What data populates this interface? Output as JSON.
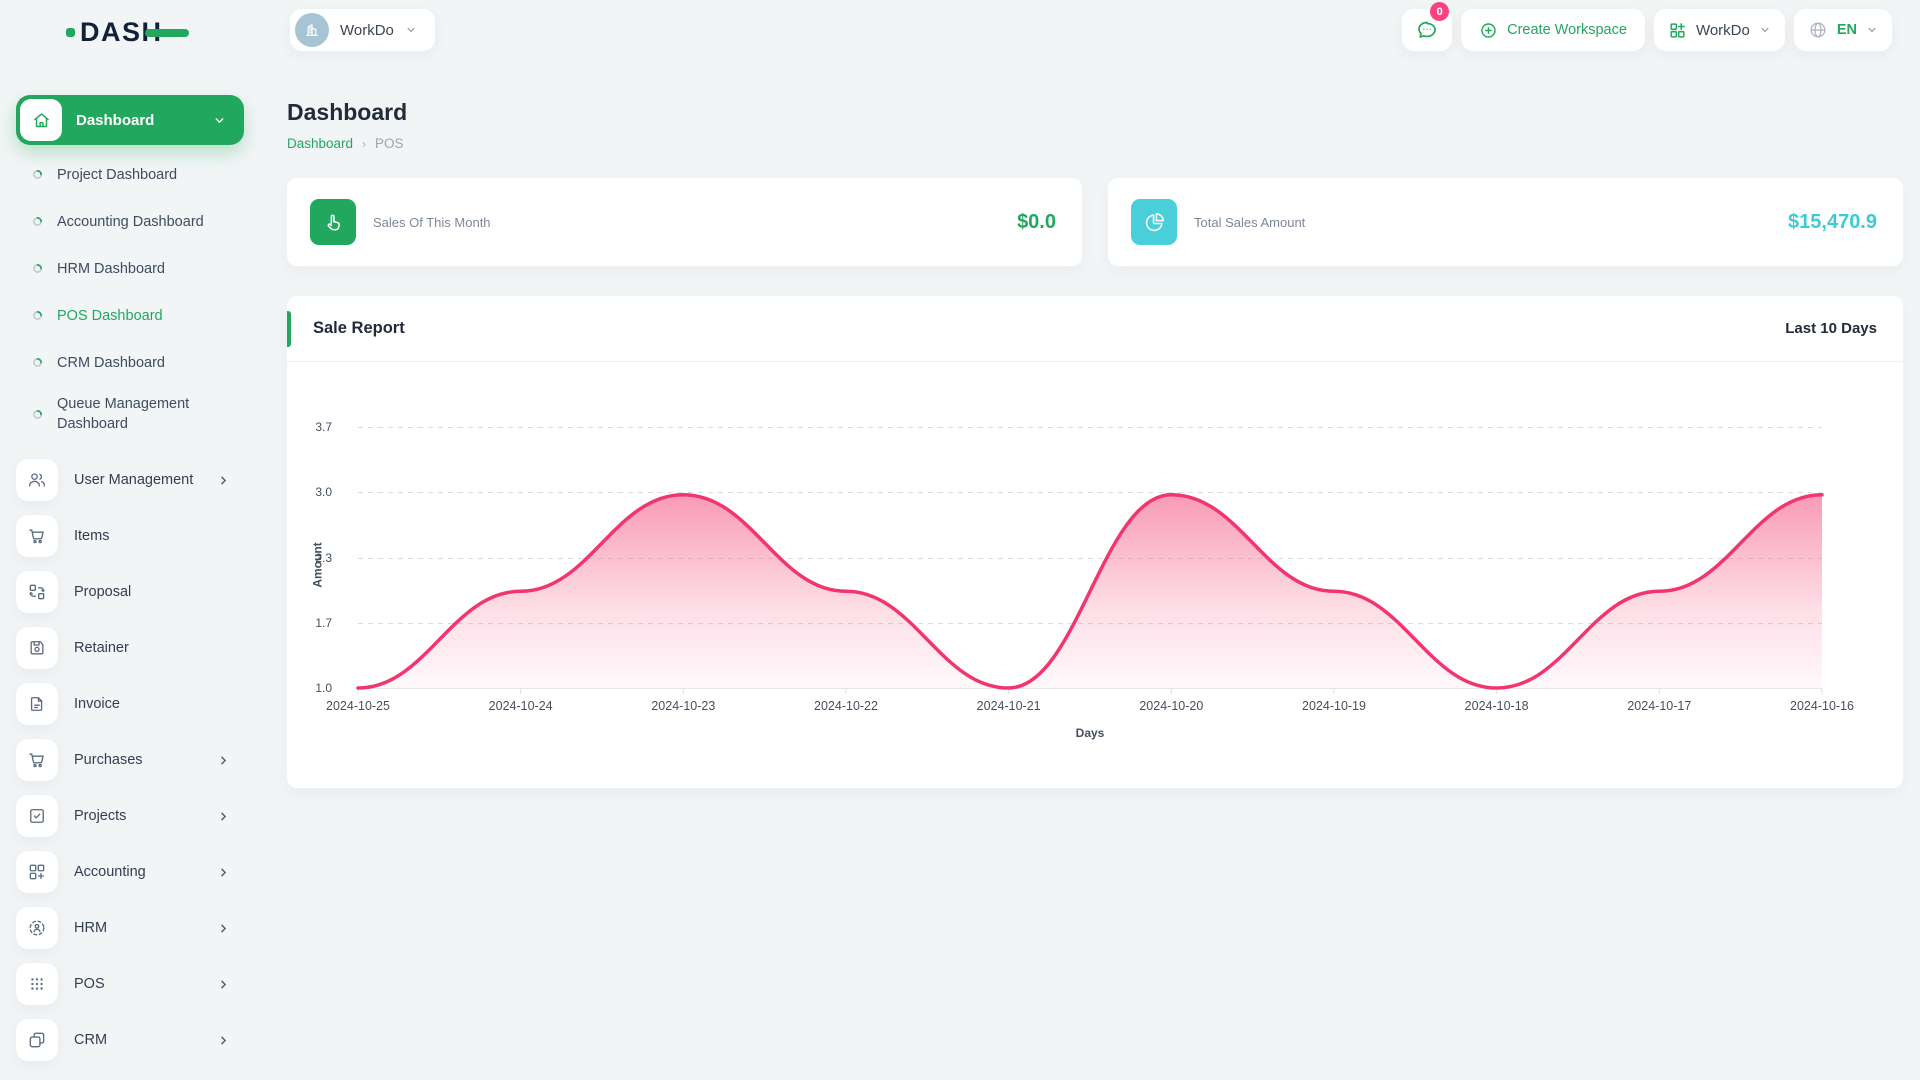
{
  "brand": {
    "logo_text": "DASH"
  },
  "topbar": {
    "workspace_pill_label": "WorkDo",
    "messages_badge": "0",
    "create_workspace_label": "Create Workspace",
    "workspace_dropdown_label": "WorkDo",
    "language": "EN"
  },
  "sidebar": {
    "group_label": "Dashboard",
    "children": [
      {
        "label": "Project Dashboard",
        "active": false
      },
      {
        "label": "Accounting Dashboard",
        "active": false
      },
      {
        "label": "HRM Dashboard",
        "active": false
      },
      {
        "label": "POS Dashboard",
        "active": true
      },
      {
        "label": "CRM Dashboard",
        "active": false
      },
      {
        "label": "Queue Management Dashboard",
        "active": false
      }
    ],
    "items": [
      {
        "label": "User Management",
        "icon": "users-icon",
        "expandable": true
      },
      {
        "label": "Items",
        "icon": "cart-icon",
        "expandable": false
      },
      {
        "label": "Proposal",
        "icon": "swap-squares-icon",
        "expandable": false
      },
      {
        "label": "Retainer",
        "icon": "save-icon",
        "expandable": false
      },
      {
        "label": "Invoice",
        "icon": "invoice-icon",
        "expandable": false
      },
      {
        "label": "Purchases",
        "icon": "cart-icon",
        "expandable": true
      },
      {
        "label": "Projects",
        "icon": "check-square-icon",
        "expandable": true
      },
      {
        "label": "Accounting",
        "icon": "grid-plus-icon",
        "expandable": true
      },
      {
        "label": "HRM",
        "icon": "person-dashed-circle-icon",
        "expandable": true
      },
      {
        "label": "POS",
        "icon": "dots-grid-icon",
        "expandable": true
      },
      {
        "label": "CRM",
        "icon": "overlap-squares-icon",
        "expandable": true
      }
    ]
  },
  "page": {
    "title": "Dashboard",
    "breadcrumb": [
      "Dashboard",
      "POS"
    ]
  },
  "stats": [
    {
      "label": "Sales Of This Month",
      "value": "$0.0",
      "icon": "tap-hand-icon",
      "color": "#22a75e"
    },
    {
      "label": "Total Sales Amount",
      "value": "$15,470.9",
      "icon": "pie-chart-icon",
      "color": "#49cfd9"
    }
  ],
  "chart_card": {
    "title": "Sale Report",
    "period": "Last 10 Days"
  },
  "chart_data": {
    "type": "area",
    "title": "Sale Report",
    "x": [
      "2024-10-25",
      "2024-10-24",
      "2024-10-23",
      "2024-10-22",
      "2024-10-21",
      "2024-10-20",
      "2024-10-19",
      "2024-10-18",
      "2024-10-17",
      "2024-10-16"
    ],
    "values": [
      1,
      2,
      3,
      2,
      1,
      3,
      2,
      1,
      2,
      3
    ],
    "xlabel": "Days",
    "ylabel": "Amount",
    "ylim": [
      1.0,
      3.7
    ],
    "ytick_labels": [
      "3.7",
      "3.0",
      "2.3",
      "1.7",
      "1.0"
    ],
    "grid": true,
    "legend": false,
    "line_color": "#f2366d",
    "grid_color": "#d9dee4"
  }
}
